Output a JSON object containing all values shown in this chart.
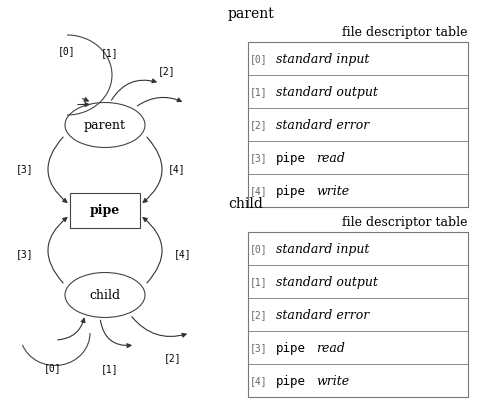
{
  "bg_color": "#ffffff",
  "parent_label": "parent",
  "child_label": "child",
  "pipe_label": "pipe",
  "parent_table_title": "parent",
  "child_table_title": "child",
  "fd_table_header": "file descriptor table",
  "fd_rows": [
    [
      "[0]",
      "standard input",
      false
    ],
    [
      "[1]",
      "standard output",
      false
    ],
    [
      "[2]",
      "standard error",
      false
    ],
    [
      "[3]",
      "pipe",
      "read"
    ],
    [
      "[4]",
      "pipe",
      "write"
    ]
  ],
  "font_size_label": 9,
  "font_size_node": 9,
  "font_size_bracket": 7,
  "font_size_title": 10,
  "font_size_header": 9,
  "font_size_row_idx": 7,
  "font_size_row_content": 9
}
